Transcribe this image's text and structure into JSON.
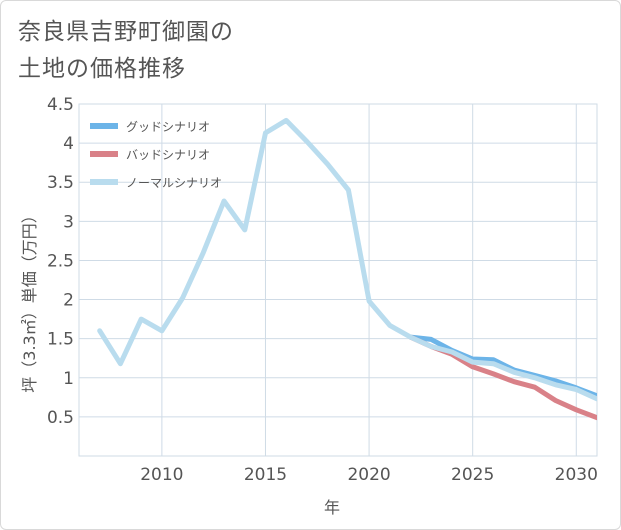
{
  "title": {
    "line1": "奈良県吉野町御園の",
    "line2": "土地の価格推移"
  },
  "chart_data": {
    "type": "line",
    "xlabel": "年",
    "ylabel": "坪（3.3㎡）単価（万円）",
    "xlim": [
      2006,
      2031
    ],
    "ylim": [
      0,
      4.5
    ],
    "x_ticks": [
      "2010",
      "2015",
      "2020",
      "2025",
      "2030"
    ],
    "y_ticks": [
      "0.5",
      "1",
      "1.5",
      "2",
      "2.5",
      "3",
      "3.5",
      "4",
      "4.5"
    ],
    "grid": true,
    "legend_position": "top-left",
    "series": [
      {
        "name": "グッドシナリオ",
        "color": "#6cb4e8",
        "x": [
          2022,
          2023,
          2024,
          2025,
          2026,
          2027,
          2028,
          2029,
          2030,
          2031
        ],
        "values": [
          1.52,
          1.49,
          1.35,
          1.24,
          1.23,
          1.1,
          1.03,
          0.96,
          0.87,
          0.77
        ]
      },
      {
        "name": "バッドシナリオ",
        "color": "#d98188",
        "x": [
          2022,
          2023,
          2024,
          2025,
          2026,
          2027,
          2028,
          2029,
          2030,
          2031
        ],
        "values": [
          1.52,
          1.4,
          1.3,
          1.14,
          1.05,
          0.95,
          0.88,
          0.71,
          0.59,
          0.49
        ]
      },
      {
        "name": "ノーマルシナリオ",
        "color": "#b9dcee",
        "x": [
          2007,
          2008,
          2009,
          2010,
          2011,
          2012,
          2013,
          2014,
          2015,
          2016,
          2017,
          2018,
          2019,
          2020,
          2021,
          2022,
          2023,
          2024,
          2025,
          2026,
          2027,
          2028,
          2029,
          2030,
          2031
        ],
        "values": [
          1.6,
          1.18,
          1.75,
          1.6,
          2.02,
          2.6,
          3.26,
          2.89,
          4.13,
          4.29,
          4.02,
          3.73,
          3.4,
          1.98,
          1.67,
          1.52,
          1.4,
          1.33,
          1.2,
          1.18,
          1.07,
          1.0,
          0.91,
          0.85,
          0.73
        ]
      }
    ]
  }
}
